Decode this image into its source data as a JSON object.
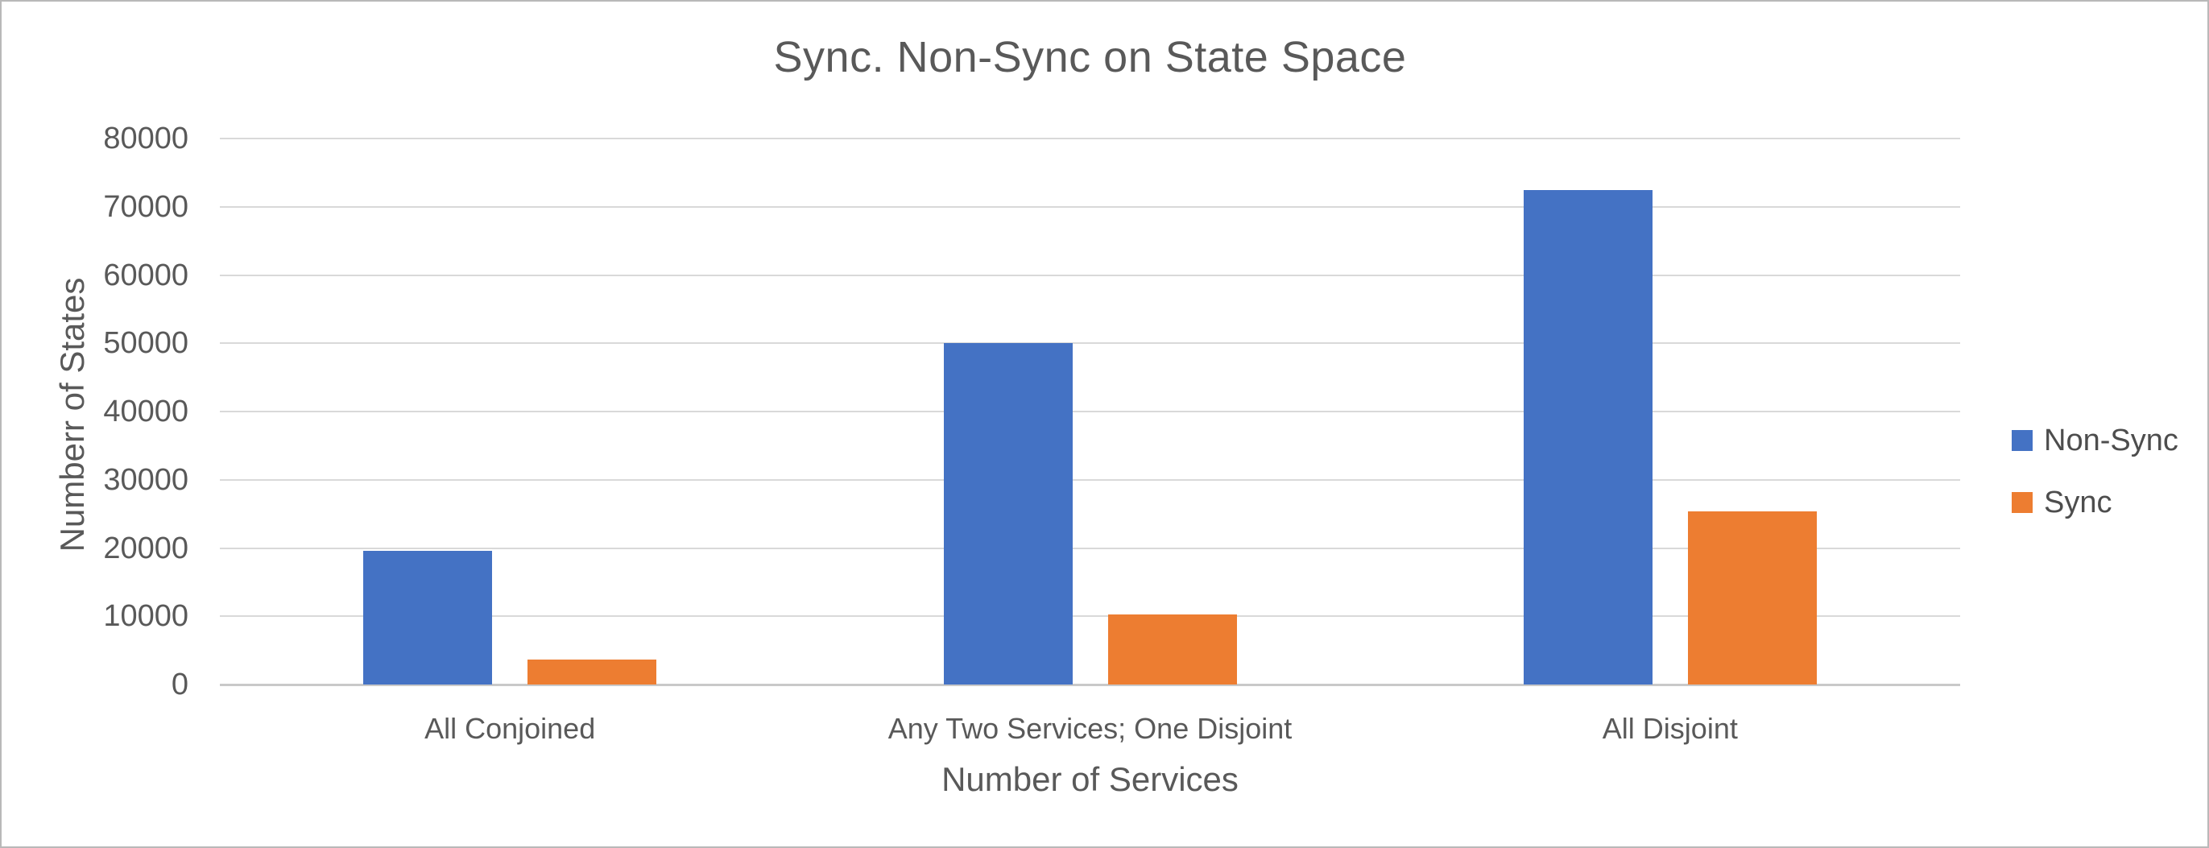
{
  "frame": {
    "background": "#ffffff",
    "border_color": "#b9b9b9"
  },
  "chart_data": {
    "type": "bar",
    "title": "Sync. Non-Sync on State Space",
    "xlabel": "Number of Services",
    "ylabel": "Numberr of States",
    "categories": [
      "All Conjoined",
      "Any Two Services; One Disjoint",
      "All Disjoint"
    ],
    "series": [
      {
        "name": "Non-Sync",
        "color": "#4472C4",
        "values": [
          19600,
          50000,
          72500
        ]
      },
      {
        "name": "Sync",
        "color": "#ED7D31",
        "values": [
          3700,
          10300,
          25400
        ]
      }
    ],
    "ylim": [
      0,
      80000
    ],
    "yticks": [
      0,
      10000,
      20000,
      30000,
      40000,
      50000,
      60000,
      70000,
      80000
    ],
    "grid": true,
    "legend_position": "right",
    "colors": {
      "text": "#595959",
      "gridline": "#d9d9d9",
      "baseline": "#c9c9c9"
    }
  }
}
